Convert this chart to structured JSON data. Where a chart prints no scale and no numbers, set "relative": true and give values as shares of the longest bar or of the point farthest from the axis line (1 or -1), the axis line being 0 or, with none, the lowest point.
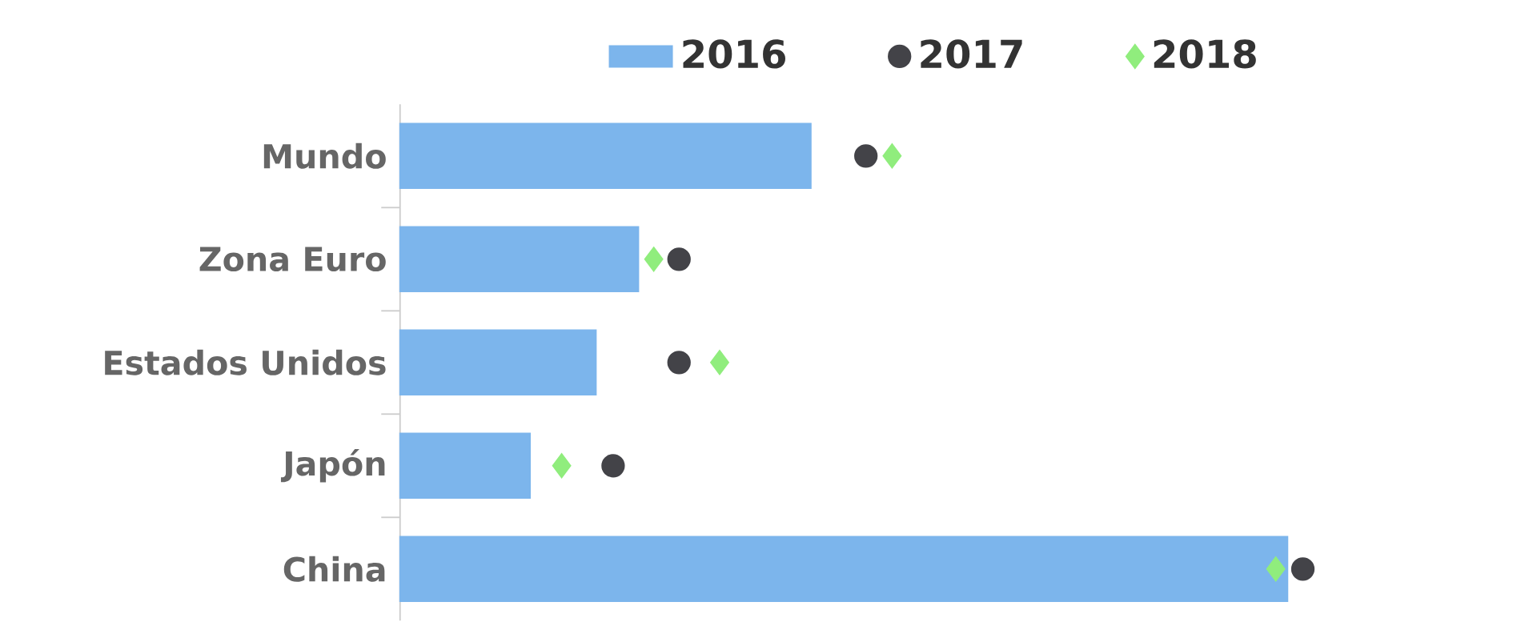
{
  "chart_data": {
    "type": "bar",
    "orientation": "horizontal",
    "relative": true,
    "categories": [
      "Mundo",
      "Zona Euro",
      "Estados Unidos",
      "Japón",
      "China"
    ],
    "series": [
      {
        "name": "2016",
        "color": "#7cb5ec",
        "values": [
          0.455,
          0.264,
          0.217,
          0.144,
          0.983
        ]
      },
      {
        "name": "2017",
        "type": "scatter",
        "color": "#434348",
        "marker": "circle",
        "values": [
          0.516,
          0.309,
          0.309,
          0.236,
          1
        ]
      },
      {
        "name": "2018",
        "type": "scatter",
        "color": "#90ed7d",
        "marker": "diamond",
        "values": [
          0.545,
          0.281,
          0.354,
          0.179,
          0.97
        ]
      }
    ],
    "legend": "top",
    "tick_labels": "y"
  }
}
